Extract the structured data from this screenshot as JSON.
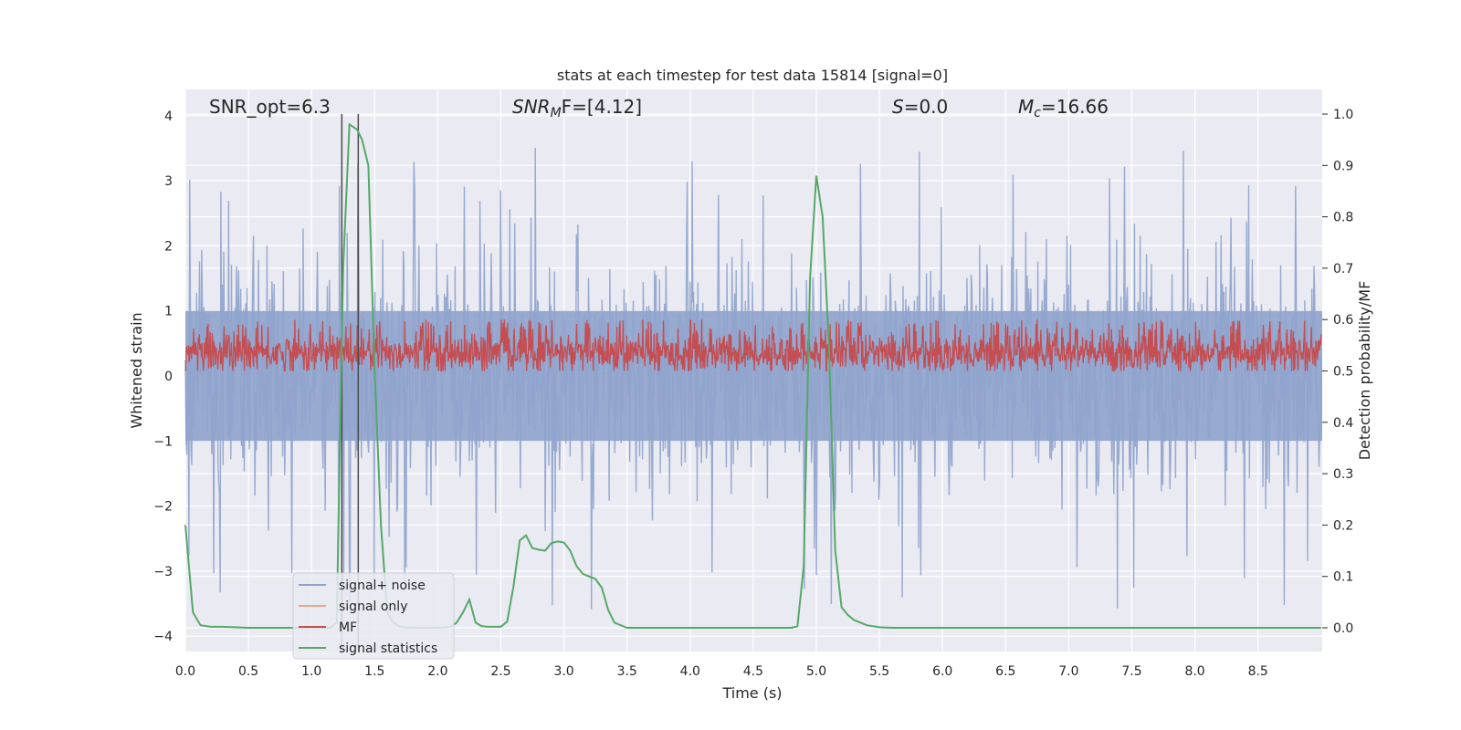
{
  "chart_data": {
    "type": "line",
    "title": "stats at each timestep for test data 15814 [signal=0]",
    "xlabel": "Time (s)",
    "ylabel": "Whitened strain",
    "y2label": "Detection probability/MF",
    "xlim": [
      0.0,
      9.0
    ],
    "ylim": [
      -4.25,
      4.4
    ],
    "y2lim": [
      -0.048,
      1.035
    ],
    "x_ticks": [
      "0.0",
      "0.5",
      "1.0",
      "1.5",
      "2.0",
      "2.5",
      "3.0",
      "3.5",
      "4.0",
      "4.5",
      "5.0",
      "5.5",
      "6.0",
      "6.5",
      "7.0",
      "7.5",
      "8.0",
      "8.5"
    ],
    "y_ticks": [
      "4",
      "3",
      "2",
      "1",
      "0",
      "−1",
      "−2",
      "−3",
      "−4"
    ],
    "y2_ticks": [
      "1.0",
      "0.9",
      "0.8",
      "0.7",
      "0.6",
      "0.5",
      "0.4",
      "0.3",
      "0.2",
      "0.1",
      "0.0"
    ],
    "grid": true,
    "legend_position": "lower-left",
    "annotations": [
      {
        "id": "snr-opt",
        "text": "SNR_opt=6.3"
      },
      {
        "id": "snr-mf",
        "text": "SNR",
        "sub": "M",
        "tail": "F=[4.12]"
      },
      {
        "id": "s-stat",
        "text": "S",
        "tail": "=0.0"
      },
      {
        "id": "mc",
        "text": "M",
        "sub": "c",
        "tail": "=16.66"
      }
    ],
    "vertical_markers": [
      1.24,
      1.37
    ],
    "series": [
      {
        "name": "signal+ noise",
        "color": "#8fa3cc",
        "axis": "left",
        "kind": "noise",
        "envelope": {
          "typical": 1.6,
          "spike_max": 4.0,
          "spike_min": -3.9
        }
      },
      {
        "name": "signal only",
        "color": "#e6a58c",
        "axis": "left",
        "kind": "flat",
        "values": []
      },
      {
        "name": "MF",
        "color": "#c44e52",
        "axis": "right",
        "kind": "noise-band",
        "range": [
          0.5,
          0.6
        ]
      },
      {
        "name": "signal statistics",
        "color": "#55a868",
        "axis": "right",
        "kind": "line",
        "x": [
          0.0,
          0.06,
          0.12,
          0.2,
          0.3,
          0.5,
          0.8,
          1.0,
          1.1,
          1.15,
          1.2,
          1.22,
          1.25,
          1.3,
          1.33,
          1.36,
          1.4,
          1.45,
          1.5,
          1.55,
          1.6,
          1.65,
          1.7,
          1.8,
          2.0,
          2.1,
          2.15,
          2.2,
          2.25,
          2.3,
          2.35,
          2.4,
          2.5,
          2.55,
          2.6,
          2.65,
          2.7,
          2.75,
          2.8,
          2.85,
          2.9,
          2.95,
          3.0,
          3.05,
          3.1,
          3.15,
          3.2,
          3.25,
          3.3,
          3.35,
          3.4,
          3.5,
          3.6,
          4.0,
          4.5,
          4.7,
          4.8,
          4.85,
          4.9,
          4.95,
          5.0,
          5.05,
          5.1,
          5.15,
          5.2,
          5.25,
          5.3,
          5.4,
          5.5,
          5.6,
          6.0,
          7.0,
          8.0,
          8.5,
          9.0
        ],
        "y": [
          0.2,
          0.03,
          0.005,
          0.002,
          0.002,
          0.0,
          0.0,
          0.0,
          0.0,
          0.0,
          0.01,
          0.3,
          0.7,
          0.98,
          0.975,
          0.97,
          0.95,
          0.9,
          0.5,
          0.2,
          0.03,
          0.01,
          0.002,
          0.0,
          0.0,
          0.002,
          0.01,
          0.03,
          0.055,
          0.01,
          0.003,
          0.002,
          0.002,
          0.012,
          0.08,
          0.17,
          0.18,
          0.155,
          0.152,
          0.15,
          0.165,
          0.168,
          0.166,
          0.15,
          0.12,
          0.105,
          0.1,
          0.095,
          0.078,
          0.035,
          0.01,
          0.0,
          0.0,
          0.0,
          0.0,
          0.0,
          0.0,
          0.003,
          0.12,
          0.68,
          0.88,
          0.8,
          0.55,
          0.15,
          0.04,
          0.025,
          0.015,
          0.005,
          0.001,
          0.0,
          0.0,
          0.0,
          0.0,
          0.0,
          0.0
        ]
      }
    ]
  }
}
